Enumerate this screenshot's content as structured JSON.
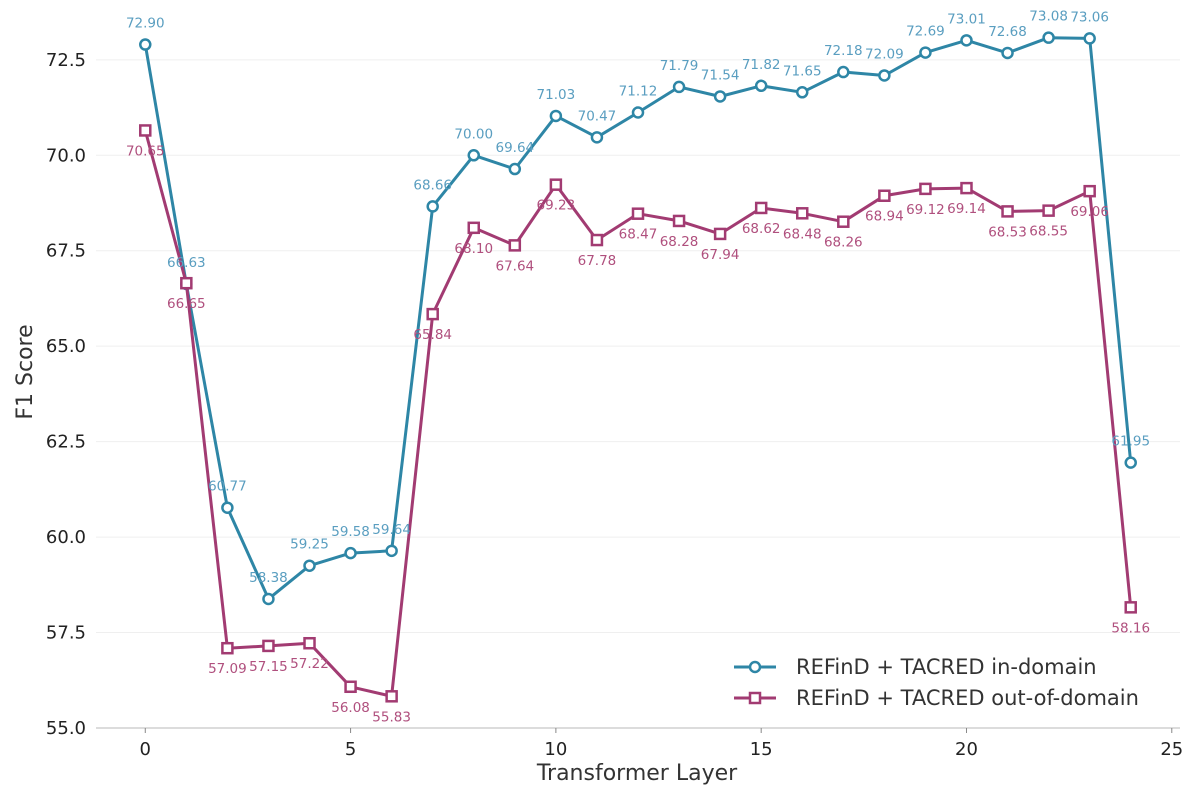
{
  "chart_data": {
    "type": "line",
    "xlabel": "Transformer Layer",
    "ylabel": "F1 Score",
    "xlim": [
      -1.2,
      25.2
    ],
    "ylim": [
      55.0,
      73.7
    ],
    "xticks": [
      0,
      5,
      10,
      15,
      20,
      25
    ],
    "yticks": [
      55.0,
      57.5,
      60.0,
      62.5,
      65.0,
      67.5,
      70.0,
      72.5
    ],
    "ytick_labels": [
      "55.0",
      "57.5",
      "60.0",
      "62.5",
      "65.0",
      "67.5",
      "70.0",
      "72.5"
    ],
    "grid": "horizontal, light",
    "legend_position": "bottom-right",
    "x": [
      0,
      1,
      2,
      3,
      4,
      5,
      6,
      7,
      8,
      9,
      10,
      11,
      12,
      13,
      14,
      15,
      16,
      17,
      18,
      19,
      20,
      21,
      22,
      23,
      24
    ],
    "series": [
      {
        "name": "REFinD + TACRED in-domain",
        "color": "#2e86a6",
        "label_color": "#5a9ec0",
        "marker": "circle",
        "label_position": "above",
        "values": [
          72.9,
          66.63,
          60.77,
          58.38,
          59.25,
          59.58,
          59.64,
          68.66,
          70.0,
          69.64,
          71.03,
          70.47,
          71.12,
          71.79,
          71.54,
          71.82,
          71.65,
          72.18,
          72.09,
          72.69,
          73.01,
          72.68,
          73.08,
          73.06,
          61.95
        ],
        "labels": [
          "72.90",
          "66.63",
          "60.77",
          "58.38",
          "59.25",
          "59.58",
          "59.64",
          "68.66",
          "70.00",
          "69.64",
          "71.03",
          "70.47",
          "71.12",
          "71.79",
          "71.54",
          "71.82",
          "71.65",
          "72.18",
          "72.09",
          "72.69",
          "73.01",
          "72.68",
          "73.08",
          "73.06",
          "61.95"
        ]
      },
      {
        "name": "REFinD + TACRED out-of-domain",
        "color": "#a23b72",
        "label_color": "#b0507e",
        "marker": "square",
        "label_position": "below",
        "values": [
          70.65,
          66.65,
          57.09,
          57.15,
          57.22,
          56.08,
          55.83,
          65.84,
          68.1,
          67.64,
          69.23,
          67.78,
          68.47,
          68.28,
          67.94,
          68.62,
          68.48,
          68.26,
          68.94,
          69.12,
          69.14,
          68.53,
          68.55,
          69.06,
          58.16
        ],
        "labels": [
          "70.65",
          "66.65",
          "57.09",
          "57.15",
          "57.22",
          "56.08",
          "55.83",
          "65.84",
          "68.10",
          "67.64",
          "69.23",
          "67.78",
          "68.47",
          "68.28",
          "67.94",
          "68.62",
          "68.48",
          "68.26",
          "68.94",
          "69.12",
          "69.14",
          "68.53",
          "68.55",
          "69.06",
          "58.16"
        ]
      }
    ]
  }
}
